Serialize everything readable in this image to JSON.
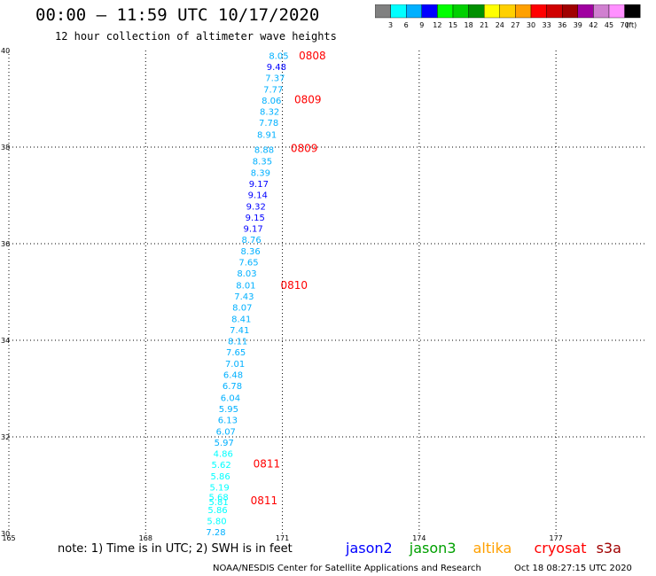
{
  "header": {
    "title": "00:00 – 11:59 UTC 10/17/2020",
    "subtitle": "12 hour collection of altimeter wave heights"
  },
  "legend": {
    "colors": [
      "#808080",
      "#00ffff",
      "#00b0ff",
      "#0000ff",
      "#00ff00",
      "#00d000",
      "#009000",
      "#ffff00",
      "#ffd000",
      "#ffa000",
      "#ff0000",
      "#d00000",
      "#a00000",
      "#a000a0",
      "#d080d0",
      "#ff90ff",
      "#000000"
    ],
    "labels": [
      "3",
      "6",
      "9",
      "12",
      "15",
      "18",
      "21",
      "24",
      "27",
      "30",
      "33",
      "36",
      "39",
      "42",
      "45",
      "70"
    ],
    "unit": "(ft)"
  },
  "footer": {
    "note": "note:  1) Time is in UTC;  2) SWH is in feet",
    "credit": "NOAA/NESDIS Center for Satellite Applications and Research",
    "timestamp": "Oct 18 08:27:15 UTC 2020",
    "satellites": [
      {
        "name": "jason2",
        "color": "#0000ff"
      },
      {
        "name": "jason3",
        "color": "#00a000"
      },
      {
        "name": "altika",
        "color": "#ffa000"
      },
      {
        "name": "cryosat",
        "color": "#ff0000"
      },
      {
        "name": "s3a",
        "color": "#a00000"
      }
    ]
  },
  "chart_data": {
    "type": "scatter",
    "title": "00:00 – 11:59 UTC 10/17/2020",
    "subtitle": "12 hour collection of altimeter wave heights",
    "xlim": [
      165,
      179
    ],
    "ylim": [
      30,
      40
    ],
    "x_ticks": [
      "165",
      "168",
      "171",
      "174",
      "177"
    ],
    "x_tick_values": [
      165,
      168,
      171,
      174,
      177
    ],
    "y_ticks": [
      "30",
      "32",
      "34",
      "36",
      "38",
      "40"
    ],
    "y_tick_values": [
      30,
      32,
      34,
      36,
      38,
      40
    ],
    "grid": true,
    "series": [
      {
        "name": "jason3",
        "points": [
          {
            "lon": 170.92,
            "lat": 39.9,
            "swh": "8.05",
            "color": "#00b0ff"
          },
          {
            "lon": 170.87,
            "lat": 39.67,
            "swh": "9.48",
            "color": "#0000ff"
          },
          {
            "lon": 170.84,
            "lat": 39.44,
            "swh": "7.37",
            "color": "#00b0ff"
          },
          {
            "lon": 170.8,
            "lat": 39.2,
            "swh": "7.77",
            "color": "#00b0ff"
          },
          {
            "lon": 170.76,
            "lat": 38.97,
            "swh": "8.06",
            "color": "#00b0ff"
          },
          {
            "lon": 170.72,
            "lat": 38.74,
            "swh": "8.32",
            "color": "#00b0ff"
          },
          {
            "lon": 170.7,
            "lat": 38.51,
            "swh": "7.78",
            "color": "#00b0ff"
          },
          {
            "lon": 170.66,
            "lat": 38.27,
            "swh": "8.91",
            "color": "#00b0ff"
          },
          {
            "lon": 170.6,
            "lat": 37.95,
            "swh": "8.88",
            "color": "#00b0ff"
          },
          {
            "lon": 170.56,
            "lat": 37.72,
            "swh": "8.35",
            "color": "#00b0ff"
          },
          {
            "lon": 170.52,
            "lat": 37.48,
            "swh": "8.39",
            "color": "#00b0ff"
          },
          {
            "lon": 170.48,
            "lat": 37.25,
            "swh": "9.17",
            "color": "#0000ff"
          },
          {
            "lon": 170.46,
            "lat": 37.02,
            "swh": "9.14",
            "color": "#0000ff"
          },
          {
            "lon": 170.42,
            "lat": 36.78,
            "swh": "9.32",
            "color": "#0000ff"
          },
          {
            "lon": 170.4,
            "lat": 36.55,
            "swh": "9.15",
            "color": "#0000ff"
          },
          {
            "lon": 170.36,
            "lat": 36.32,
            "swh": "9.17",
            "color": "#0000ff"
          },
          {
            "lon": 170.32,
            "lat": 36.09,
            "swh": "8.76",
            "color": "#00b0ff"
          },
          {
            "lon": 170.3,
            "lat": 35.85,
            "swh": "8.36",
            "color": "#00b0ff"
          },
          {
            "lon": 170.26,
            "lat": 35.62,
            "swh": "7.65",
            "color": "#00b0ff"
          },
          {
            "lon": 170.22,
            "lat": 35.39,
            "swh": "8.03",
            "color": "#00b0ff"
          },
          {
            "lon": 170.2,
            "lat": 35.15,
            "swh": "8.01",
            "color": "#00b0ff"
          },
          {
            "lon": 170.16,
            "lat": 34.92,
            "swh": "7.43",
            "color": "#00b0ff"
          },
          {
            "lon": 170.12,
            "lat": 34.69,
            "swh": "8.07",
            "color": "#00b0ff"
          },
          {
            "lon": 170.1,
            "lat": 34.45,
            "swh": "8.41",
            "color": "#00b0ff"
          },
          {
            "lon": 170.06,
            "lat": 34.22,
            "swh": "7.41",
            "color": "#00b0ff"
          },
          {
            "lon": 170.02,
            "lat": 33.99,
            "swh": "8.11",
            "color": "#00b0ff"
          },
          {
            "lon": 169.98,
            "lat": 33.76,
            "swh": "7.65",
            "color": "#00b0ff"
          },
          {
            "lon": 169.96,
            "lat": 33.52,
            "swh": "7.01",
            "color": "#00b0ff"
          },
          {
            "lon": 169.92,
            "lat": 33.29,
            "swh": "6.48",
            "color": "#00b0ff"
          },
          {
            "lon": 169.9,
            "lat": 33.06,
            "swh": "6.78",
            "color": "#00b0ff"
          },
          {
            "lon": 169.86,
            "lat": 32.82,
            "swh": "6.04",
            "color": "#00b0ff"
          },
          {
            "lon": 169.82,
            "lat": 32.59,
            "swh": "5.95",
            "color": "#00b0ff"
          },
          {
            "lon": 169.8,
            "lat": 32.36,
            "swh": "6.13",
            "color": "#00b0ff"
          },
          {
            "lon": 169.76,
            "lat": 32.12,
            "swh": "6.07",
            "color": "#00b0ff"
          },
          {
            "lon": 169.72,
            "lat": 31.89,
            "swh": "5.97",
            "color": "#00b0ff"
          },
          {
            "lon": 169.7,
            "lat": 31.66,
            "swh": "4.86",
            "color": "#00ffff"
          },
          {
            "lon": 169.66,
            "lat": 31.43,
            "swh": "5.62",
            "color": "#00ffff"
          },
          {
            "lon": 169.64,
            "lat": 31.19,
            "swh": "5.86",
            "color": "#00ffff"
          },
          {
            "lon": 169.62,
            "lat": 30.96,
            "swh": "5.19",
            "color": "#00ffff"
          },
          {
            "lon": 169.6,
            "lat": 30.76,
            "swh": "5.68",
            "color": "#00ffff"
          },
          {
            "lon": 169.6,
            "lat": 30.66,
            "swh": "5.81",
            "color": "#00ffff"
          },
          {
            "lon": 169.58,
            "lat": 30.5,
            "swh": "5.86",
            "color": "#00ffff"
          },
          {
            "lon": 169.56,
            "lat": 30.27,
            "swh": "5.80",
            "color": "#00ffff"
          },
          {
            "lon": 169.54,
            "lat": 30.04,
            "swh": "7.28",
            "color": "#00b0ff"
          }
        ]
      }
    ],
    "pass_times": [
      {
        "lon": 171.36,
        "lat": 39.89,
        "label": "0808"
      },
      {
        "lon": 171.26,
        "lat": 38.98,
        "label": "0809"
      },
      {
        "lon": 171.18,
        "lat": 37.97,
        "label": "0809"
      },
      {
        "lon": 170.96,
        "lat": 35.14,
        "label": "0810"
      },
      {
        "lon": 170.36,
        "lat": 31.44,
        "label": "0811"
      },
      {
        "lon": 170.3,
        "lat": 30.68,
        "label": "0811"
      }
    ]
  }
}
